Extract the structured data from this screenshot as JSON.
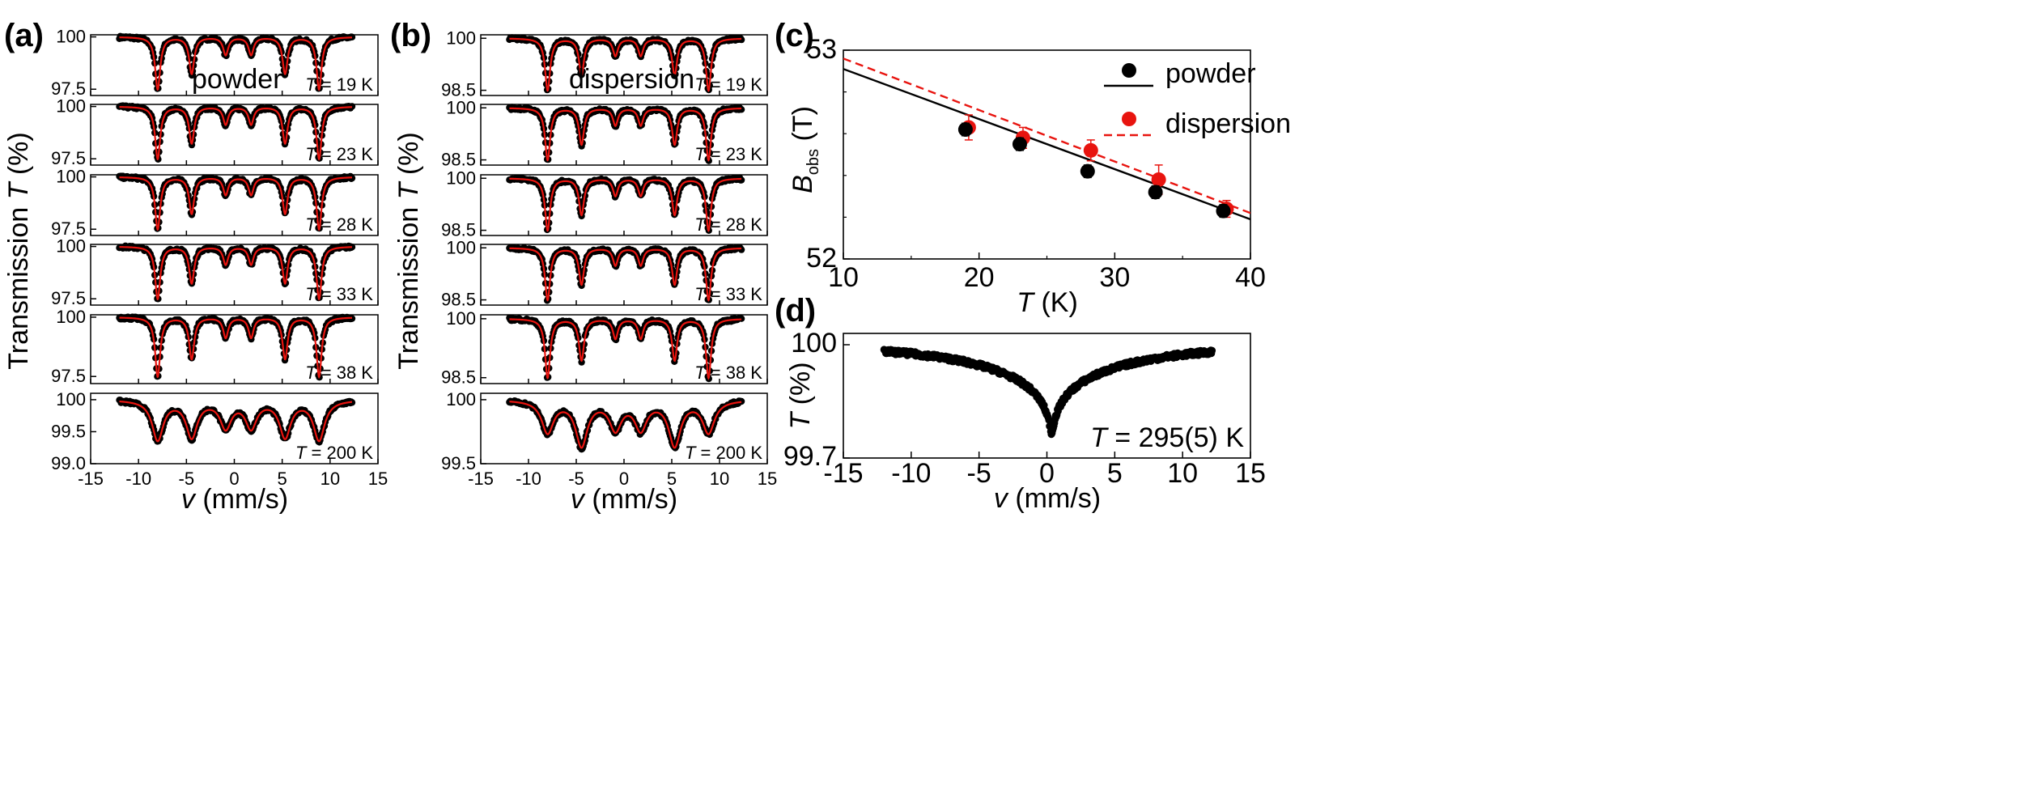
{
  "panels": {
    "a": {
      "label": "(a)",
      "sample": "powder"
    },
    "b": {
      "label": "(b)",
      "sample": "dispersion"
    },
    "c": {
      "label": "(c)"
    },
    "d": {
      "label": "(d)"
    }
  },
  "colors": {
    "data": "#000000",
    "fit": "#e8140f",
    "dispersion": "#e8140f",
    "powder": "#000000"
  },
  "chart_data": [
    {
      "type": "scatter",
      "panel": "(a)",
      "ylabel_main": "Transmission ",
      "ylabel_italic": "T",
      "ylabel_unit": " (%)",
      "xlabel_italic": "v",
      "xlabel_unit": " (mm/s)",
      "xlim": [
        -15,
        15
      ],
      "xticks": [
        -15,
        -10,
        -5,
        0,
        5,
        10,
        15
      ],
      "annotation": "powder",
      "line_positions": [
        -8.0,
        -4.45,
        -0.9,
        1.75,
        5.3,
        8.85
      ],
      "series": [
        {
          "temp": "19",
          "tlabel_italic": "T",
          "tlabel_rest": " = 19 K",
          "ylim": [
            97.2,
            100.1
          ],
          "yticks": [
            100,
            97.5
          ],
          "ytick_labels": [
            "100",
            "97.5"
          ],
          "depths": [
            2.5,
            1.75,
            0.85,
            0.85,
            1.75,
            2.5
          ],
          "width": 0.32
        },
        {
          "temp": "23",
          "tlabel_italic": "T",
          "tlabel_rest": " = 23 K",
          "ylim": [
            97.2,
            100.1
          ],
          "yticks": [
            100,
            97.5
          ],
          "ytick_labels": [
            "100",
            "97.5"
          ],
          "depths": [
            2.5,
            1.75,
            0.85,
            0.85,
            1.75,
            2.5
          ],
          "width": 0.32
        },
        {
          "temp": "28",
          "tlabel_italic": "T",
          "tlabel_rest": " = 28 K",
          "ylim": [
            97.2,
            100.1
          ],
          "yticks": [
            100,
            97.5
          ],
          "ytick_labels": [
            "100",
            "97.5"
          ],
          "depths": [
            2.5,
            1.75,
            0.85,
            0.85,
            1.75,
            2.5
          ],
          "width": 0.32
        },
        {
          "temp": "33",
          "tlabel_italic": "T",
          "tlabel_rest": " = 33 K",
          "ylim": [
            97.2,
            100.1
          ],
          "yticks": [
            100,
            97.5
          ],
          "ytick_labels": [
            "100",
            "97.5"
          ],
          "depths": [
            2.5,
            1.75,
            0.85,
            0.85,
            1.75,
            2.5
          ],
          "width": 0.32
        },
        {
          "temp": "38",
          "tlabel_italic": "T",
          "tlabel_rest": " = 38 K",
          "ylim": [
            97.2,
            100.1
          ],
          "yticks": [
            100,
            97.5
          ],
          "ytick_labels": [
            "100",
            "97.5"
          ],
          "depths": [
            2.5,
            1.75,
            0.85,
            0.85,
            1.75,
            2.5
          ],
          "width": 0.32
        },
        {
          "temp": "200",
          "tlabel_italic": "T",
          "tlabel_rest": " = 200 K",
          "ylim": [
            99.0,
            100.1
          ],
          "yticks": [
            100,
            99.5,
            99.0
          ],
          "ytick_labels": [
            "100",
            "99.5",
            "99.0"
          ],
          "depths": [
            0.62,
            0.57,
            0.42,
            0.42,
            0.57,
            0.62
          ],
          "width": 0.7
        }
      ]
    },
    {
      "type": "scatter",
      "panel": "(b)",
      "ylabel_main": "Transmission ",
      "ylabel_italic": "T",
      "ylabel_unit": " (%)",
      "xlabel_italic": "v",
      "xlabel_unit": " (mm/s)",
      "xlim": [
        -15,
        15
      ],
      "xticks": [
        -15,
        -10,
        -5,
        0,
        5,
        10,
        15
      ],
      "annotation": "dispersion",
      "line_positions": [
        -8.0,
        -4.45,
        -0.9,
        1.75,
        5.3,
        8.85
      ],
      "series": [
        {
          "temp": "19",
          "tlabel_italic": "T",
          "tlabel_rest": " = 19 K",
          "ylim": [
            98.35,
            100.1
          ],
          "yticks": [
            100,
            98.5
          ],
          "ytick_labels": [
            "100",
            "98.5"
          ],
          "depths": [
            1.5,
            1.05,
            0.5,
            0.5,
            1.05,
            1.5
          ],
          "width": 0.32
        },
        {
          "temp": "23",
          "tlabel_italic": "T",
          "tlabel_rest": " = 23 K",
          "ylim": [
            98.35,
            100.1
          ],
          "yticks": [
            100,
            98.5
          ],
          "ytick_labels": [
            "100",
            "98.5"
          ],
          "depths": [
            1.5,
            1.05,
            0.5,
            0.5,
            1.05,
            1.5
          ],
          "width": 0.32
        },
        {
          "temp": "28",
          "tlabel_italic": "T",
          "tlabel_rest": " = 28 K",
          "ylim": [
            98.35,
            100.1
          ],
          "yticks": [
            100,
            98.5
          ],
          "ytick_labels": [
            "100",
            "98.5"
          ],
          "depths": [
            1.5,
            1.05,
            0.5,
            0.5,
            1.05,
            1.5
          ],
          "width": 0.32
        },
        {
          "temp": "33",
          "tlabel_italic": "T",
          "tlabel_rest": " = 33 K",
          "ylim": [
            98.35,
            100.1
          ],
          "yticks": [
            100,
            98.5
          ],
          "ytick_labels": [
            "100",
            "98.5"
          ],
          "depths": [
            1.5,
            1.05,
            0.5,
            0.5,
            1.05,
            1.5
          ],
          "width": 0.32
        },
        {
          "temp": "38",
          "tlabel_italic": "T",
          "tlabel_rest": " = 38 K",
          "ylim": [
            98.35,
            100.1
          ],
          "yticks": [
            100,
            98.5
          ],
          "ytick_labels": [
            "100",
            "98.5"
          ],
          "depths": [
            1.5,
            1.05,
            0.5,
            0.5,
            1.05,
            1.5
          ],
          "width": 0.32
        },
        {
          "temp": "200",
          "tlabel_italic": "T",
          "tlabel_rest": " = 200 K",
          "ylim": [
            99.5,
            100.05
          ],
          "yticks": [
            100,
            99.5
          ],
          "ytick_labels": [
            "100",
            "99.5"
          ],
          "depths": [
            0.25,
            0.35,
            0.22,
            0.22,
            0.35,
            0.25
          ],
          "width": 0.75
        }
      ]
    },
    {
      "type": "scatter",
      "panel": "(c)",
      "ylabel_italic": "B",
      "ylabel_sub": "obs",
      "ylabel_unit": " (T)",
      "xlabel_italic": "T",
      "xlabel_unit": " (K)",
      "xlim": [
        10,
        40
      ],
      "ylim": [
        52,
        53
      ],
      "xticks": [
        10,
        20,
        30,
        40
      ],
      "yticks": [
        52,
        53
      ],
      "series": [
        {
          "name": "powder",
          "x": [
            19,
            23,
            28,
            33,
            38
          ],
          "y": [
            52.62,
            52.55,
            52.42,
            52.32,
            52.23
          ],
          "err": [
            0.03,
            0.03,
            0.03,
            0.03,
            0.03
          ],
          "fit_line": {
            "x": [
              10,
              40
            ],
            "y": [
              52.91,
              52.19
            ]
          }
        },
        {
          "name": "dispersion",
          "x": [
            19,
            23,
            28,
            33,
            38
          ],
          "y": [
            52.63,
            52.58,
            52.52,
            52.38,
            52.24
          ],
          "err": [
            0.06,
            0.05,
            0.05,
            0.07,
            0.04
          ],
          "fit_line": {
            "x": [
              10,
              40
            ],
            "y": [
              52.96,
              52.22
            ]
          }
        }
      ]
    },
    {
      "type": "scatter",
      "panel": "(d)",
      "ylabel_italic": "T",
      "ylabel_unit": " (%)",
      "xlabel_italic": "v",
      "xlabel_unit": " (mm/s)",
      "xlim": [
        -15,
        15
      ],
      "ylim": [
        99.7,
        100.03
      ],
      "xticks": [
        -15,
        -10,
        -5,
        0,
        5,
        10,
        15
      ],
      "yticks": [
        100,
        99.7
      ],
      "ytick_labels": [
        "100",
        "99.7"
      ],
      "annotation_italic": "T",
      "annotation_rest": " = 295(5) K",
      "line_center": 0.35,
      "depth": 0.24
    }
  ]
}
